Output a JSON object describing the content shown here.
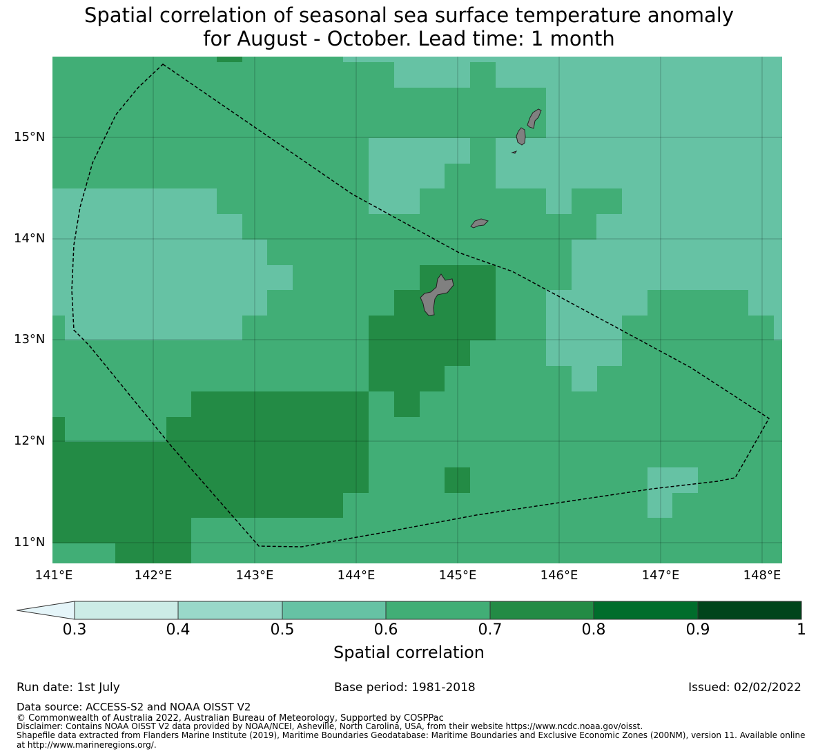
{
  "title": {
    "line1": "Spatial correlation of seasonal sea surface temperature anomaly",
    "line2": "for August - October. Lead time: 1 month"
  },
  "map": {
    "lat_labels": [
      "15°N",
      "14°N",
      "13°N",
      "12°N",
      "11°N"
    ],
    "lon_labels": [
      "141°E",
      "142°E",
      "143°E",
      "144°E",
      "145°E",
      "146°E",
      "147°E",
      "148°E"
    ],
    "land_color": "#808080",
    "boundary_style": "dashed black line (maritime boundary / EEZ)"
  },
  "colorbar": {
    "label": "Spatial correlation",
    "ticks": [
      "0.3",
      "0.4",
      "0.5",
      "0.6",
      "0.7",
      "0.8",
      "0.9",
      "1"
    ],
    "under_color": "#e5f5f9",
    "colors": [
      "#ccece6",
      "#99d8c9",
      "#66c2a4",
      "#41ae76",
      "#238b45",
      "#006d2c",
      "#00441b"
    ],
    "extend": "min"
  },
  "meta": {
    "run_date": "Run date: 1st July",
    "base_period": "Base period: 1981-2018",
    "issued": "Issued: 02/02/2022"
  },
  "footer": {
    "data_source": "Data source: ACCESS-S2 and NOAA OISST V2",
    "copyright": "© Commonwealth of Australia 2022, Australian Bureau of Meteorology, Supported by COSPPac",
    "disclaimer": "Disclaimer: Contains NOAA OISST V2 data provided by NOAA/NCEI, Asheville, North Carolina, USA, from their website https://www.ncdc.noaa.gov/oisst.",
    "shapefile": "Shapefile data extracted from Flanders Marine Institute (2019), Maritime Boundaries Geodatabase: Maritime Boundaries and Exclusive Economic Zones (200NM), version 11. Available online at http://www.marineregions.org/."
  }
}
